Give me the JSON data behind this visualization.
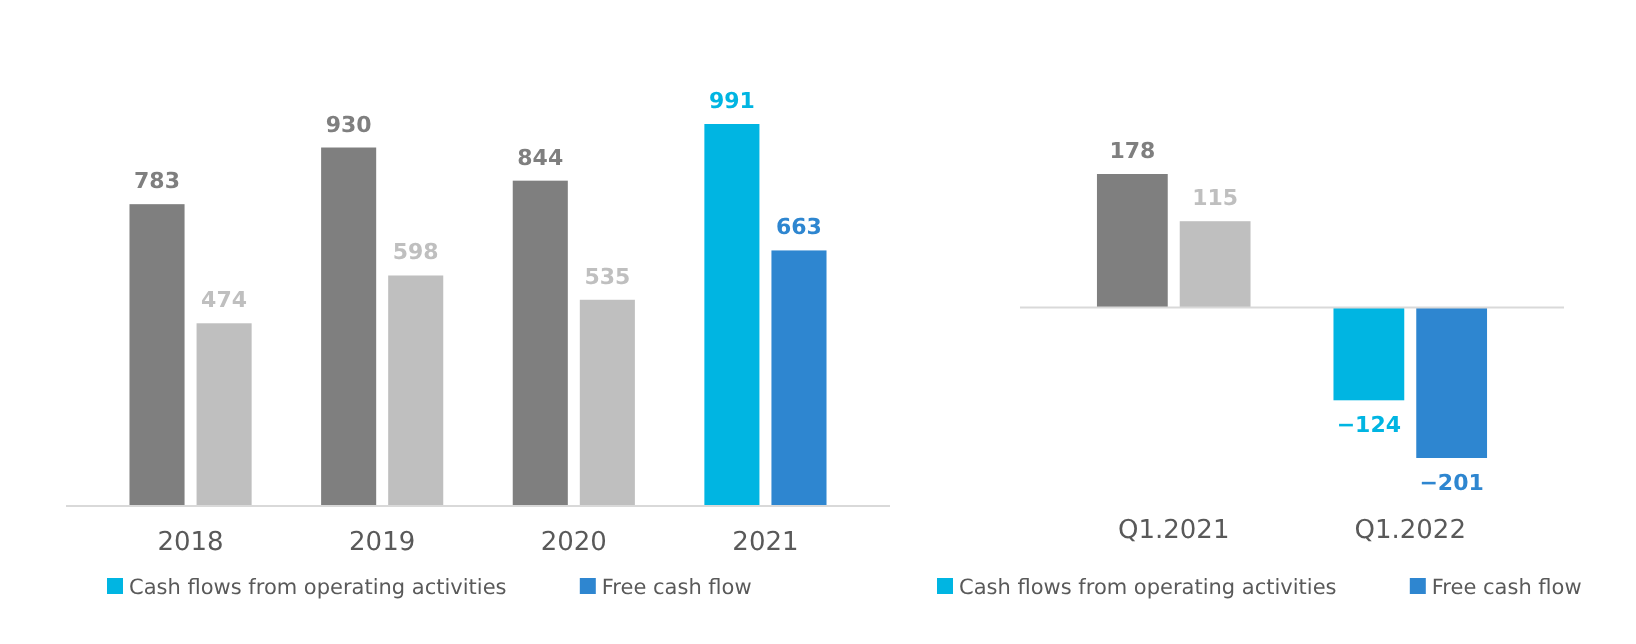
{
  "chart_data": [
    {
      "type": "bar",
      "categories": [
        "2018",
        "2019",
        "2020",
        "2021"
      ],
      "data_labels": true,
      "legend": "bottom",
      "series": [
        {
          "name": "Cash flows from operating activities",
          "color": "#00b5e2",
          "colors": [
            "#7f7f7f",
            "#7f7f7f",
            "#7f7f7f",
            "#00b5e2"
          ],
          "values": [
            783,
            930,
            844,
            991
          ]
        },
        {
          "name": "Free cash flow",
          "color": "#2e86d0",
          "colors": [
            "#bfbfbf",
            "#bfbfbf",
            "#bfbfbf",
            "#2e86d0"
          ],
          "values": [
            474,
            598,
            535,
            663
          ]
        }
      ]
    },
    {
      "type": "bar",
      "categories": [
        "Q1.2021",
        "Q1.2022"
      ],
      "data_labels": true,
      "legend": "bottom",
      "series": [
        {
          "name": "Cash flows from operating activities",
          "color": "#00b5e2",
          "colors": [
            "#7f7f7f",
            "#00b5e2"
          ],
          "values": [
            178,
            -124
          ]
        },
        {
          "name": "Free cash flow",
          "color": "#2e86d0",
          "colors": [
            "#bfbfbf",
            "#2e86d0"
          ],
          "values": [
            115,
            -201
          ]
        }
      ]
    }
  ]
}
